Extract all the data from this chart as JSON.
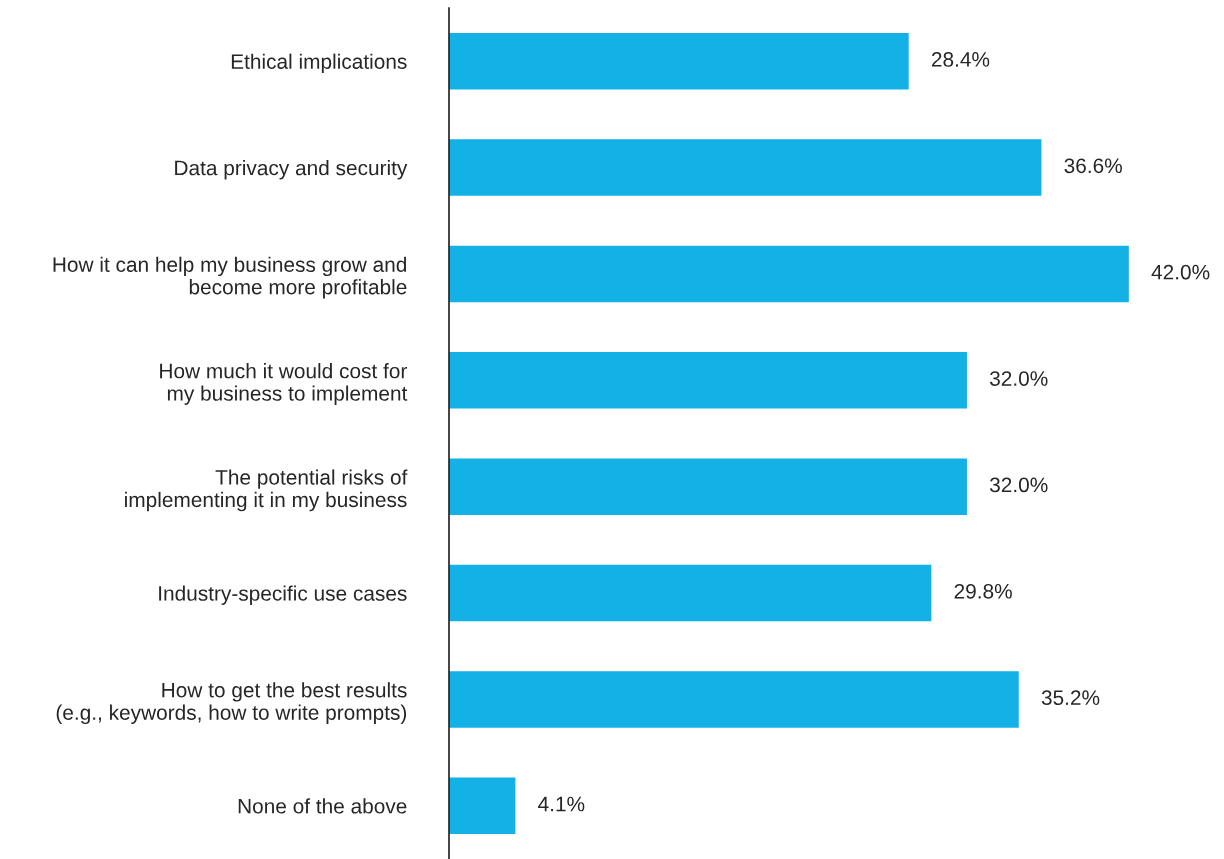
{
  "chart_data": {
    "type": "bar",
    "orientation": "horizontal",
    "categories": [
      "Ethical implications",
      "Data privacy and security",
      "How it can help my business grow and\nbecome more profitable",
      "How much it would cost for\nmy business to implement",
      "The potential risks of\nimplementing it in my business",
      "Industry-specific use cases",
      "How to get the best results\n(e.g., keywords, how to write prompts)",
      "None of the above"
    ],
    "values": [
      28.4,
      36.6,
      42.0,
      32.0,
      32.0,
      29.8,
      35.2,
      4.1
    ],
    "value_labels": [
      "28.4%",
      "36.6%",
      "42.0%",
      "32.0%",
      "32.0%",
      "29.8%",
      "35.2%",
      "4.1%"
    ],
    "color": "#14b1e6",
    "tick_labels": "y"
  }
}
